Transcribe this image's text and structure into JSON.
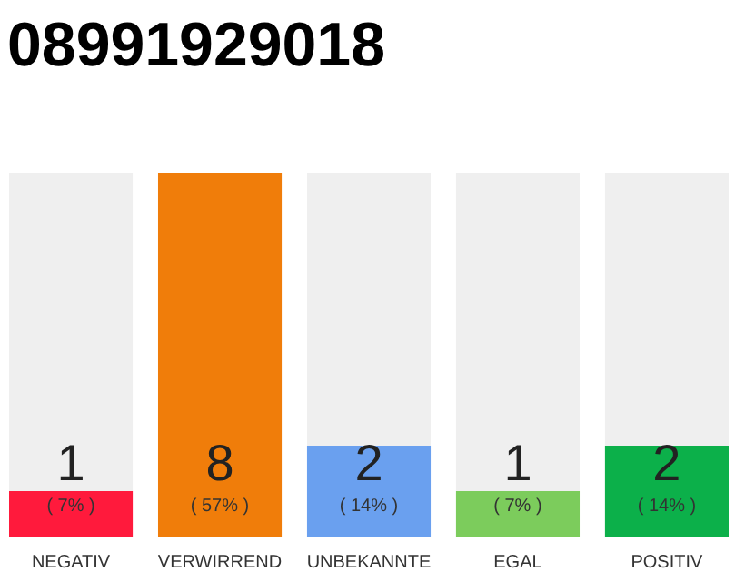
{
  "chart_data": {
    "type": "bar",
    "title": "08991929018",
    "categories": [
      "NEGATIV",
      "VERWIRREND",
      "UNBEKANNTE",
      "EGAL",
      "POSITIV"
    ],
    "values": [
      1,
      8,
      2,
      1,
      2
    ],
    "colors": [
      "#ff1a3c",
      "#f07d0a",
      "#6aa0ef",
      "#7ccc5c",
      "#0cb04a"
    ],
    "ylim": [
      0,
      8
    ],
    "tick_labels": "x",
    "data_labels": true,
    "annotations": [
      "( 7% )",
      "( 57% )",
      "( 14% )",
      "( 7% )",
      "( 14% )"
    ]
  }
}
